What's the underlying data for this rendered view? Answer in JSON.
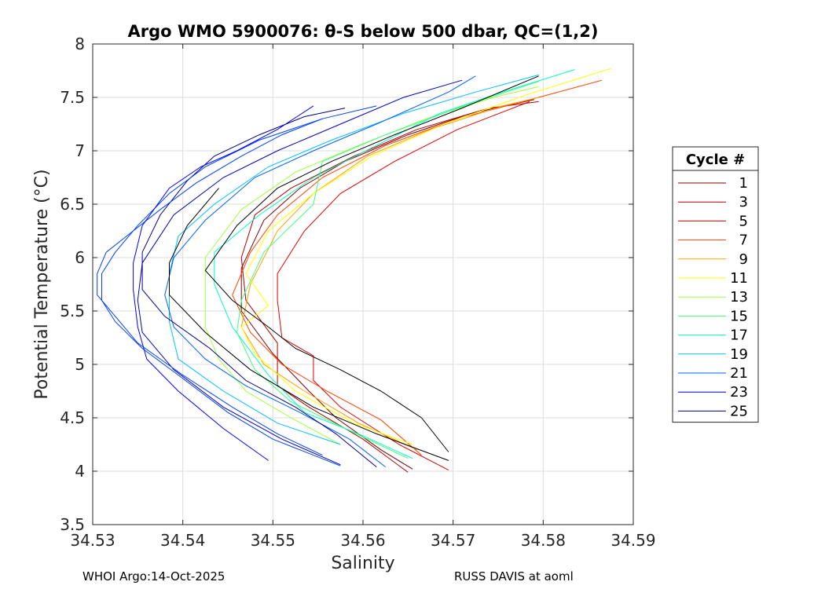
{
  "chart_data": {
    "type": "line",
    "title": "Argo WMO 5900076: θ-S below 500 dbar,  QC=(1,2)",
    "xlabel": "Salinity",
    "ylabel": "Potential Temperature (°C)",
    "xlim": [
      34.53,
      34.59
    ],
    "ylim": [
      3.5,
      8
    ],
    "xticks": [
      "34.53",
      "34.54",
      "34.55",
      "34.56",
      "34.57",
      "34.58",
      "34.59"
    ],
    "yticks": [
      "3.5",
      "4",
      "4.5",
      "5",
      "5.5",
      "6",
      "6.5",
      "7",
      "7.5",
      "8"
    ],
    "grid": true,
    "legend": {
      "title": "Cycle #",
      "placement": "outside-right"
    },
    "series": [
      {
        "name": "1",
        "color": "#800000",
        "points": [
          [
            34.5655,
            4.02
          ],
          [
            34.562,
            4.2
          ],
          [
            34.557,
            4.5
          ],
          [
            34.554,
            4.75
          ],
          [
            34.55,
            5.1
          ],
          [
            34.5465,
            5.5
          ],
          [
            34.5465,
            5.9
          ],
          [
            34.549,
            6.35
          ],
          [
            34.553,
            6.65
          ],
          [
            34.558,
            6.9
          ],
          [
            34.565,
            7.15
          ],
          [
            34.572,
            7.35
          ],
          [
            34.579,
            7.48
          ]
        ]
      },
      {
        "name": "3",
        "color": "#b00000",
        "points": [
          [
            34.565,
            3.99
          ],
          [
            34.56,
            4.3
          ],
          [
            34.554,
            4.6
          ],
          [
            34.5505,
            4.8
          ],
          [
            34.5505,
            5.2
          ],
          [
            34.547,
            5.6
          ],
          [
            34.5465,
            6.0
          ],
          [
            34.548,
            6.4
          ],
          [
            34.552,
            6.65
          ],
          [
            34.559,
            6.95
          ],
          [
            34.566,
            7.2
          ],
          [
            34.574,
            7.4
          ],
          [
            34.5795,
            7.46
          ]
        ]
      },
      {
        "name": "5",
        "color": "#e00000",
        "points": [
          [
            34.5695,
            4.01
          ],
          [
            34.564,
            4.25
          ],
          [
            34.5575,
            4.6
          ],
          [
            34.5545,
            4.85
          ],
          [
            34.5545,
            5.08
          ],
          [
            34.551,
            5.25
          ],
          [
            34.5505,
            5.6
          ],
          [
            34.5505,
            5.85
          ],
          [
            34.5535,
            6.25
          ],
          [
            34.5575,
            6.6
          ],
          [
            34.5635,
            6.9
          ],
          [
            34.5705,
            7.2
          ],
          [
            34.5785,
            7.46
          ]
        ]
      },
      {
        "name": "7",
        "color": "#ff4000",
        "points": [
          [
            34.5665,
            4.15
          ],
          [
            34.562,
            4.48
          ],
          [
            34.556,
            4.75
          ],
          [
            34.551,
            5.0
          ],
          [
            34.5475,
            5.3
          ],
          [
            34.5455,
            5.65
          ],
          [
            34.5475,
            6.05
          ],
          [
            34.5505,
            6.4
          ],
          [
            34.5555,
            6.75
          ],
          [
            34.5625,
            7.05
          ],
          [
            34.5705,
            7.3
          ],
          [
            34.5795,
            7.5
          ],
          [
            34.5865,
            7.66
          ]
        ]
      },
      {
        "name": "9",
        "color": "#ffa000",
        "points": [
          [
            34.566,
            4.2
          ],
          [
            34.5595,
            4.45
          ],
          [
            34.5535,
            4.75
          ],
          [
            34.549,
            5.0
          ],
          [
            34.5465,
            5.35
          ],
          [
            34.5475,
            5.75
          ],
          [
            34.5505,
            6.25
          ],
          [
            34.5545,
            6.6
          ],
          [
            34.5605,
            6.95
          ],
          [
            34.5675,
            7.2
          ],
          [
            34.5755,
            7.42
          ],
          [
            34.5795,
            7.5
          ]
        ]
      },
      {
        "name": "11",
        "color": "#ffff00",
        "points": [
          [
            34.5655,
            4.25
          ],
          [
            34.559,
            4.45
          ],
          [
            34.5525,
            4.75
          ],
          [
            34.548,
            5.1
          ],
          [
            34.5465,
            5.35
          ],
          [
            34.5495,
            5.55
          ],
          [
            34.547,
            5.85
          ],
          [
            34.5495,
            6.25
          ],
          [
            34.5545,
            6.6
          ],
          [
            34.561,
            6.95
          ],
          [
            34.569,
            7.25
          ],
          [
            34.578,
            7.52
          ],
          [
            34.5875,
            7.77
          ]
        ]
      },
      {
        "name": "13",
        "color": "#a0ff40",
        "points": [
          [
            34.5575,
            4.25
          ],
          [
            34.552,
            4.5
          ],
          [
            34.547,
            4.75
          ],
          [
            34.544,
            5.05
          ],
          [
            34.5425,
            5.35
          ],
          [
            34.5425,
            5.75
          ],
          [
            34.5425,
            6.0
          ],
          [
            34.5465,
            6.45
          ],
          [
            34.5525,
            6.8
          ],
          [
            34.5595,
            7.05
          ],
          [
            34.567,
            7.3
          ],
          [
            34.5745,
            7.5
          ],
          [
            34.5795,
            7.6
          ]
        ]
      },
      {
        "name": "15",
        "color": "#40ff80",
        "points": [
          [
            34.565,
            4.12
          ],
          [
            34.558,
            4.4
          ],
          [
            34.552,
            4.65
          ],
          [
            34.548,
            4.95
          ],
          [
            34.546,
            5.3
          ],
          [
            34.5465,
            5.6
          ],
          [
            34.549,
            6.05
          ],
          [
            34.5545,
            6.5
          ],
          [
            34.5555,
            6.9
          ],
          [
            34.5625,
            7.15
          ],
          [
            34.5705,
            7.4
          ],
          [
            34.5795,
            7.65
          ]
        ]
      },
      {
        "name": "17",
        "color": "#00ffc0",
        "points": [
          [
            34.5655,
            4.12
          ],
          [
            34.5595,
            4.35
          ],
          [
            34.5535,
            4.55
          ],
          [
            34.5495,
            4.9
          ],
          [
            34.5455,
            5.35
          ],
          [
            34.5435,
            5.75
          ],
          [
            34.5435,
            6.05
          ],
          [
            34.5485,
            6.4
          ],
          [
            34.5545,
            6.75
          ],
          [
            34.5615,
            7.05
          ],
          [
            34.5685,
            7.35
          ],
          [
            34.5755,
            7.55
          ],
          [
            34.5835,
            7.76
          ]
        ]
      },
      {
        "name": "19",
        "color": "#00c0ff",
        "points": [
          [
            34.5575,
            4.25
          ],
          [
            34.5505,
            4.45
          ],
          [
            34.5445,
            4.75
          ],
          [
            34.5395,
            5.05
          ],
          [
            34.5385,
            5.4
          ],
          [
            34.5385,
            5.85
          ],
          [
            34.5395,
            6.2
          ],
          [
            34.5435,
            6.5
          ],
          [
            34.5495,
            6.85
          ],
          [
            34.5565,
            7.1
          ],
          [
            34.5645,
            7.35
          ],
          [
            34.5725,
            7.55
          ],
          [
            34.5795,
            7.71
          ]
        ]
      },
      {
        "name": "21",
        "color": "#0060ff",
        "points": [
          [
            34.5625,
            4.04
          ],
          [
            34.5585,
            4.3
          ],
          [
            34.553,
            4.55
          ],
          [
            34.547,
            4.8
          ],
          [
            34.5425,
            5.05
          ],
          [
            34.539,
            5.35
          ],
          [
            34.538,
            5.65
          ],
          [
            34.539,
            6.0
          ],
          [
            34.5425,
            6.35
          ],
          [
            34.548,
            6.75
          ],
          [
            34.5545,
            7.0
          ],
          [
            34.5615,
            7.25
          ],
          [
            34.5695,
            7.55
          ],
          [
            34.5725,
            7.7
          ]
        ]
      },
      {
        "name": "23",
        "color": "#0000c0",
        "points": [
          [
            34.5575,
            4.06
          ],
          [
            34.551,
            4.3
          ],
          [
            34.5445,
            4.6
          ],
          [
            34.539,
            4.95
          ],
          [
            34.5355,
            5.3
          ],
          [
            34.535,
            5.6
          ],
          [
            34.5355,
            5.95
          ],
          [
            34.539,
            6.4
          ],
          [
            34.5445,
            6.75
          ],
          [
            34.5505,
            7.0
          ],
          [
            34.5575,
            7.25
          ],
          [
            34.5645,
            7.5
          ],
          [
            34.571,
            7.66
          ]
        ]
      },
      {
        "name": "25",
        "color": "#000080",
        "points": [
          [
            34.5615,
            4.04
          ],
          [
            34.557,
            4.35
          ],
          [
            34.5525,
            4.6
          ],
          [
            34.547,
            4.85
          ],
          [
            34.543,
            5.15
          ],
          [
            34.538,
            5.45
          ],
          [
            34.5355,
            5.7
          ],
          [
            34.5355,
            6.05
          ],
          [
            34.5375,
            6.4
          ],
          [
            34.5405,
            6.72
          ],
          [
            34.5435,
            6.95
          ],
          [
            34.5485,
            7.15
          ],
          [
            34.5535,
            7.32
          ],
          [
            34.558,
            7.4
          ]
        ]
      },
      {
        "name": "",
        "color": "#000000",
        "points": [
          [
            34.5695,
            4.18
          ],
          [
            34.5665,
            4.5
          ],
          [
            34.562,
            4.75
          ],
          [
            34.5575,
            4.95
          ],
          [
            34.5525,
            5.15
          ],
          [
            34.5495,
            5.35
          ],
          [
            34.5455,
            5.6
          ],
          [
            34.5425,
            5.88
          ],
          [
            34.546,
            6.3
          ],
          [
            34.5505,
            6.65
          ],
          [
            34.5565,
            6.9
          ],
          [
            34.5635,
            7.15
          ],
          [
            34.571,
            7.4
          ],
          [
            34.5795,
            7.7
          ]
        ]
      },
      {
        "name": "",
        "color": "#000000",
        "points": [
          [
            34.5695,
            4.1
          ],
          [
            34.5615,
            4.35
          ],
          [
            34.5545,
            4.6
          ],
          [
            34.5475,
            4.95
          ],
          [
            34.5425,
            5.3
          ],
          [
            34.5385,
            5.65
          ],
          [
            34.5385,
            5.95
          ],
          [
            34.5405,
            6.3
          ],
          [
            34.544,
            6.65
          ]
        ]
      },
      {
        "name": "",
        "color": "#0040ff",
        "points": [
          [
            34.5555,
            4.15
          ],
          [
            34.5505,
            4.35
          ],
          [
            34.5455,
            4.6
          ],
          [
            34.54,
            4.9
          ],
          [
            34.535,
            5.2
          ],
          [
            34.5325,
            5.45
          ],
          [
            34.5305,
            5.65
          ],
          [
            34.5305,
            5.85
          ],
          [
            34.5315,
            6.05
          ],
          [
            34.5345,
            6.25
          ],
          [
            34.5375,
            6.45
          ],
          [
            34.5415,
            6.7
          ],
          [
            34.5465,
            6.95
          ],
          [
            34.551,
            7.15
          ],
          [
            34.5555,
            7.3
          ]
        ]
      },
      {
        "name": "",
        "color": "#0040ff",
        "points": [
          [
            34.5575,
            4.05
          ],
          [
            34.55,
            4.3
          ],
          [
            34.545,
            4.55
          ],
          [
            34.5395,
            4.9
          ],
          [
            34.5355,
            5.15
          ],
          [
            34.5325,
            5.4
          ],
          [
            34.531,
            5.6
          ],
          [
            34.531,
            5.85
          ],
          [
            34.5325,
            6.05
          ],
          [
            34.535,
            6.3
          ],
          [
            34.5385,
            6.6
          ],
          [
            34.5425,
            6.85
          ],
          [
            34.5485,
            7.1
          ],
          [
            34.5555,
            7.3
          ],
          [
            34.5615,
            7.42
          ]
        ]
      },
      {
        "name": "",
        "color": "#0000ff",
        "points": [
          [
            34.5495,
            4.1
          ],
          [
            34.5445,
            4.4
          ],
          [
            34.5395,
            4.75
          ],
          [
            34.536,
            5.05
          ],
          [
            34.535,
            5.35
          ],
          [
            34.5345,
            5.7
          ],
          [
            34.5345,
            5.95
          ],
          [
            34.5355,
            6.3
          ],
          [
            34.5385,
            6.65
          ],
          [
            34.542,
            6.85
          ],
          [
            34.546,
            7.0
          ],
          [
            34.5505,
            7.2
          ],
          [
            34.5545,
            7.42
          ]
        ]
      }
    ]
  },
  "footer": {
    "left": "WHOI Argo:14-Oct-2025",
    "right": "RUSS DAVIS at aoml"
  }
}
